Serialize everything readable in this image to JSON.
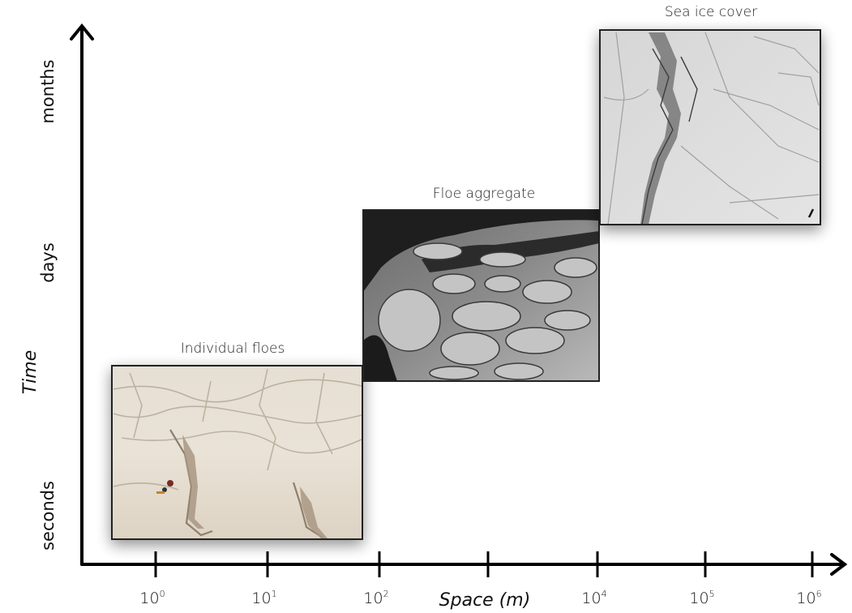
{
  "axes": {
    "x_title": "Space (m)",
    "y_title": "Time",
    "y_levels": [
      "seconds",
      "days",
      "months"
    ],
    "x_ticks": [
      {
        "base": "10",
        "exp": "0"
      },
      {
        "base": "10",
        "exp": "1"
      },
      {
        "base": "10",
        "exp": "2"
      },
      {
        "base": "",
        "exp": ""
      },
      {
        "base": "10",
        "exp": "4"
      },
      {
        "base": "10",
        "exp": "5"
      },
      {
        "base": "10",
        "exp": "6"
      }
    ]
  },
  "panels": [
    {
      "caption": "Individual floes",
      "image": "individual-floes-photo"
    },
    {
      "caption": "Floe aggregate",
      "image": "floe-aggregate-photo"
    },
    {
      "caption": "Sea ice cover",
      "image": "sea-ice-cover-photo"
    }
  ]
}
